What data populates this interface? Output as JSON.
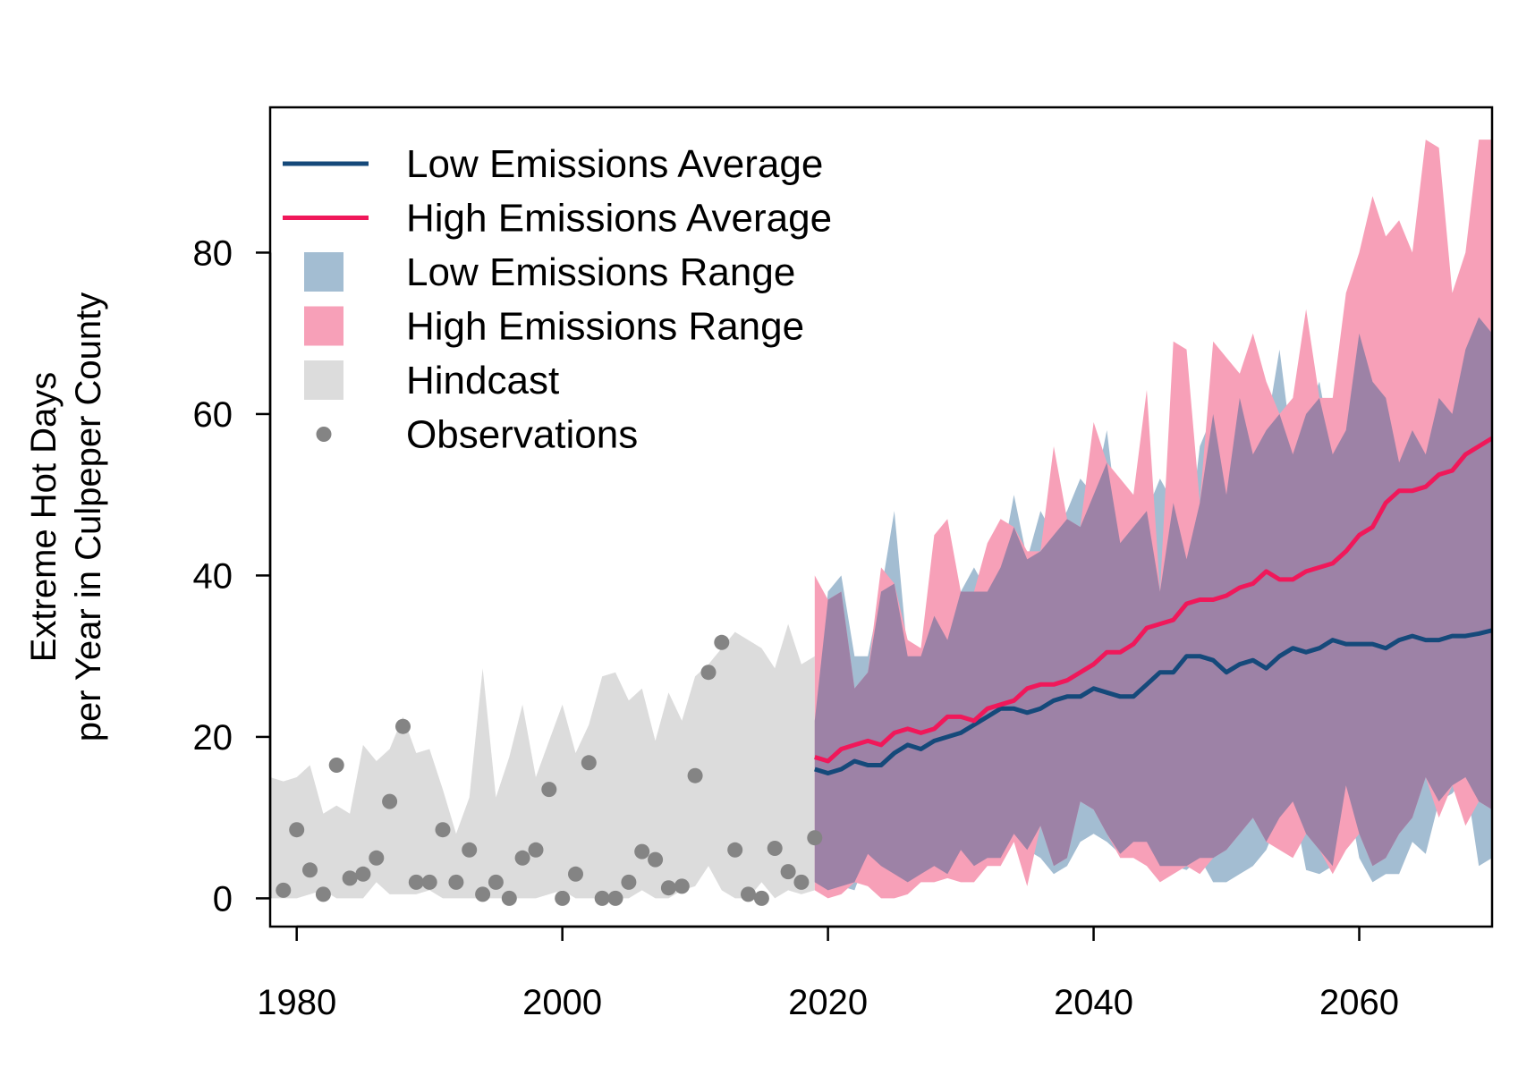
{
  "chart_data": {
    "type": "area",
    "title": "",
    "ylabel": [
      "Extreme Hot Days",
      "per Year in Culpeper County"
    ],
    "xlabel": "",
    "xlim": [
      1978,
      2070
    ],
    "ylim": [
      -3.5,
      98
    ],
    "x_ticks": [
      1980,
      2000,
      2020,
      2040,
      2060
    ],
    "y_ticks": [
      0,
      20,
      40,
      60,
      80
    ],
    "grid": false,
    "legend_position": "top-left",
    "colors": {
      "low_avg": "#15497a",
      "high_avg": "#f0185a",
      "low_range": "#a3bdd2",
      "high_range": "#f7a0b8",
      "overlap": "#9d82a6",
      "hindcast": "#dcdcdc",
      "observations": "#848484"
    },
    "legend": [
      {
        "label": "Low Emissions Average",
        "kind": "line",
        "color": "#15497a"
      },
      {
        "label": "High Emissions Average",
        "kind": "line",
        "color": "#f0185a"
      },
      {
        "label": "Low Emissions Range",
        "kind": "box",
        "color": "#a3bdd2"
      },
      {
        "label": "High Emissions Range",
        "kind": "box",
        "color": "#f7a0b8"
      },
      {
        "label": "Hindcast",
        "kind": "box",
        "color": "#dcdcdc"
      },
      {
        "label": "Observations",
        "kind": "point",
        "color": "#848484"
      }
    ],
    "hindcast": {
      "x": [
        1978,
        1979,
        1980,
        1981,
        1982,
        1983,
        1984,
        1985,
        1986,
        1987,
        1988,
        1989,
        1990,
        1991,
        1992,
        1993,
        1994,
        1995,
        1996,
        1997,
        1998,
        1999,
        2000,
        2001,
        2002,
        2003,
        2004,
        2005,
        2006,
        2007,
        2008,
        2009,
        2010,
        2011,
        2012,
        2013,
        2014,
        2015,
        2016,
        2017,
        2018,
        2019
      ],
      "low": [
        0,
        0,
        0,
        0.5,
        1,
        0,
        0,
        0,
        2,
        0.5,
        0.5,
        0.5,
        1,
        0,
        0,
        0,
        0,
        0,
        0,
        0,
        0,
        0.5,
        1,
        0,
        0,
        0,
        0,
        0,
        1,
        0,
        0,
        1,
        1.5,
        4,
        1,
        0,
        0,
        2,
        0,
        1,
        0.5,
        1
      ],
      "high": [
        15,
        14.5,
        15,
        16.5,
        10.5,
        11.5,
        10.5,
        19,
        17,
        18.5,
        22.5,
        18,
        18.5,
        13.5,
        8,
        12.5,
        28.5,
        12.5,
        17.5,
        24,
        15,
        19.5,
        24,
        18,
        21.5,
        27.5,
        28,
        24.5,
        26,
        19.5,
        25.5,
        22,
        27.5,
        29,
        31,
        33,
        32,
        31,
        28.5,
        34,
        29,
        30
      ]
    },
    "observations": {
      "x": [
        1979,
        1980,
        1981,
        1982,
        1983,
        1984,
        1985,
        1986,
        1987,
        1988,
        1989,
        1990,
        1991,
        1992,
        1993,
        1994,
        1995,
        1996,
        1997,
        1998,
        1999,
        2000,
        2001,
        2002,
        2003,
        2004,
        2005,
        2006,
        2007,
        2008,
        2009,
        2010,
        2011,
        2012,
        2013,
        2014,
        2015,
        2016,
        2017,
        2018,
        2019
      ],
      "y": [
        1,
        8.5,
        3.5,
        0.5,
        16.5,
        2.5,
        3,
        5,
        12,
        21.3,
        2,
        2,
        8.5,
        2,
        6,
        0.5,
        2,
        0,
        5,
        6,
        13.5,
        0,
        3,
        16.8,
        0,
        0,
        2,
        5.8,
        4.8,
        1.3,
        1.5,
        15.2,
        28,
        31.7,
        6,
        0.5,
        0,
        6.2,
        3.3,
        2,
        7.5
      ]
    },
    "projection_x": [
      2019,
      2020,
      2021,
      2022,
      2023,
      2024,
      2025,
      2026,
      2027,
      2028,
      2029,
      2030,
      2031,
      2032,
      2033,
      2034,
      2035,
      2036,
      2037,
      2038,
      2039,
      2040,
      2041,
      2042,
      2043,
      2044,
      2045,
      2046,
      2047,
      2048,
      2049,
      2050,
      2051,
      2052,
      2053,
      2054,
      2055,
      2056,
      2057,
      2058,
      2059,
      2060,
      2061,
      2062,
      2063,
      2064,
      2065,
      2066,
      2067,
      2068,
      2069,
      2070
    ],
    "low_range": {
      "low": [
        2,
        1,
        1.5,
        1,
        5.5,
        4,
        3,
        2,
        3,
        4,
        3,
        6,
        4,
        5,
        5,
        8,
        6,
        5,
        3,
        4,
        7,
        8,
        7,
        5.5,
        7,
        7,
        4,
        4,
        3.5,
        5,
        2,
        2,
        3,
        4,
        6,
        10,
        12,
        3.5,
        3,
        4,
        14,
        5,
        2,
        3,
        3,
        7,
        5.5,
        12,
        13,
        15,
        4,
        5
      ],
      "high": [
        22,
        38,
        40,
        30,
        30,
        38,
        48,
        30,
        30,
        35,
        32,
        38,
        41,
        38,
        41,
        50,
        42,
        48,
        45,
        48,
        52,
        50,
        58,
        44,
        46,
        48,
        52,
        49,
        42,
        56,
        60,
        50,
        62,
        55,
        58,
        68,
        55,
        60,
        64,
        55,
        58,
        70,
        64,
        62,
        54,
        58,
        55,
        62,
        60,
        68,
        72,
        70
      ]
    },
    "high_range": {
      "low": [
        1,
        0,
        0.5,
        2,
        1.5,
        0,
        0,
        0.5,
        2,
        2,
        2.5,
        2,
        2,
        4,
        4,
        7,
        1.5,
        9,
        4,
        5,
        12,
        11,
        8,
        5,
        5,
        4,
        2,
        3,
        4,
        3,
        5,
        6,
        8,
        10,
        7,
        6,
        5,
        8,
        6,
        3,
        6,
        8,
        4,
        5,
        8,
        10,
        15,
        10,
        14,
        9,
        12,
        11
      ],
      "high": [
        40,
        37,
        38,
        26,
        28,
        41,
        39,
        32,
        31,
        45,
        47,
        38,
        38,
        44,
        47,
        46,
        43,
        43,
        56,
        47,
        46,
        59,
        54,
        52,
        50,
        63,
        38,
        69,
        68,
        49,
        69,
        67,
        65,
        70,
        64,
        60,
        62,
        73,
        62,
        62,
        75,
        80,
        87,
        82,
        84,
        80,
        94,
        93,
        75,
        80,
        94,
        94
      ]
    },
    "low_average": [
      16,
      15.5,
      16,
      17,
      16.5,
      16.5,
      18,
      19,
      18.5,
      19.5,
      20,
      20.5,
      21.5,
      22.5,
      23.5,
      23.5,
      23,
      23.5,
      24.5,
      25,
      25,
      26,
      25.5,
      25,
      25,
      26.5,
      28,
      28,
      30,
      30,
      29.5,
      28,
      29,
      29.5,
      28.5,
      30,
      31,
      30.5,
      31,
      32,
      31.5,
      31.5,
      31.5,
      31,
      32,
      32.5,
      32,
      32,
      32.5,
      32.5,
      32.8,
      33.2
    ],
    "high_average": [
      17.5,
      17,
      18.5,
      19,
      19.5,
      19,
      20.5,
      21,
      20.5,
      21,
      22.5,
      22.5,
      22,
      23.5,
      24,
      24.5,
      26,
      26.5,
      26.5,
      27,
      28,
      29,
      30.5,
      30.5,
      31.5,
      33.5,
      34,
      34.5,
      36.5,
      37,
      37,
      37.5,
      38.5,
      39,
      40.5,
      39.5,
      39.5,
      40.5,
      41,
      41.5,
      43,
      45,
      46,
      49,
      50.5,
      50.5,
      51,
      52.5,
      53,
      55,
      56,
      57
    ]
  }
}
